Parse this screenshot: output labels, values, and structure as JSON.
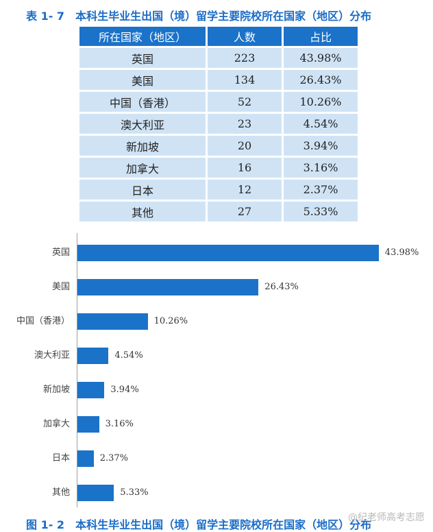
{
  "table": {
    "caption_number": "表 1- 7",
    "caption_title": "本科生毕业生出国（境）留学主要院校所在国家（地区）分布",
    "headers": [
      "所在国家（地区）",
      "人数",
      "占比"
    ],
    "rows": [
      [
        "英国",
        "223",
        "43.98%"
      ],
      [
        "美国",
        "134",
        "26.43%"
      ],
      [
        "中国（香港）",
        "52",
        "10.26%"
      ],
      [
        "澳大利亚",
        "23",
        "4.54%"
      ],
      [
        "新加坡",
        "20",
        "3.94%"
      ],
      [
        "加拿大",
        "16",
        "3.16%"
      ],
      [
        "日本",
        "12",
        "2.37%"
      ],
      [
        "其他",
        "27",
        "5.33%"
      ]
    ]
  },
  "chart_data": {
    "type": "bar",
    "orientation": "horizontal",
    "categories": [
      "英国",
      "美国",
      "中国（香港）",
      "澳大利亚",
      "新加坡",
      "加拿大",
      "日本",
      "其他"
    ],
    "values": [
      43.98,
      26.43,
      10.26,
      4.54,
      3.94,
      3.16,
      2.37,
      5.33
    ],
    "value_labels": [
      "43.98%",
      "26.43%",
      "10.26%",
      "4.54%",
      "3.94%",
      "3.16%",
      "2.37%",
      "5.33%"
    ],
    "xlim": [
      0,
      45
    ],
    "bar_color": "#1b72c9",
    "grid": false,
    "legend": "none"
  },
  "figure": {
    "caption_number": "图 1- 2",
    "caption_title": "本科生毕业生出国（境）留学主要院校所在国家（地区）分布"
  },
  "watermark": "@纪老师高考志愿"
}
